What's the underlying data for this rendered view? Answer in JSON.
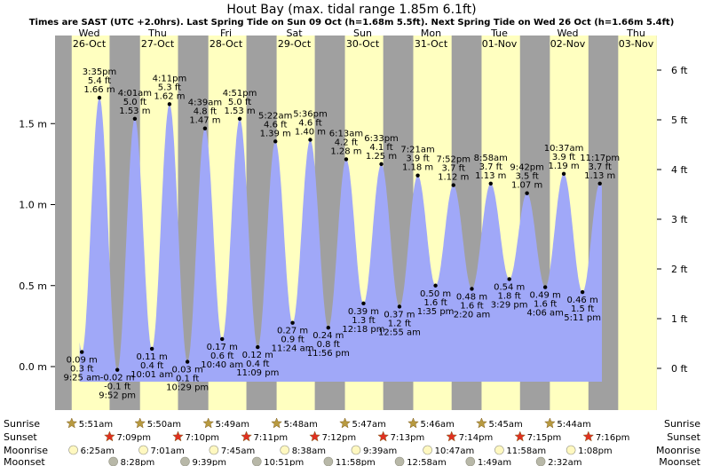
{
  "chart_data": {
    "type": "area",
    "title": "Hout Bay (max. tidal range 1.85m 6.1ft)",
    "subtitle": "Times are SAST (UTC +2.0hrs). Last Spring Tide on Sun 09 Oct (h=1.68m 5.5ft). Next Spring Tide on Wed 26 Oct (h=1.66m 5.4ft)",
    "y_left_unit": "m",
    "y_right_unit": "ft",
    "y_left_ticks": [
      "0.0 m",
      "0.5 m",
      "1.0 m",
      "1.5 m"
    ],
    "y_right_ticks": [
      "0 ft",
      "1 ft",
      "2 ft",
      "3 ft",
      "4 ft",
      "5 ft",
      "6 ft"
    ],
    "days": [
      {
        "dow": "Wed",
        "date": "26-Oct"
      },
      {
        "dow": "Thu",
        "date": "27-Oct"
      },
      {
        "dow": "Fri",
        "date": "28-Oct"
      },
      {
        "dow": "Sat",
        "date": "29-Oct"
      },
      {
        "dow": "Sun",
        "date": "30-Oct"
      },
      {
        "dow": "Mon",
        "date": "31-Oct"
      },
      {
        "dow": "Tue",
        "date": "01-Nov"
      },
      {
        "dow": "Wed",
        "date": "02-Nov"
      },
      {
        "dow": "Thu",
        "date": "03-Nov"
      }
    ],
    "day_start": "26-Oct 00:00",
    "sunrise": [
      "5:51am",
      "5:50am",
      "5:49am",
      "5:48am",
      "5:47am",
      "5:46am",
      "5:45am",
      "5:44am"
    ],
    "sunset": [
      "7:09pm",
      "7:10pm",
      "7:11pm",
      "7:12pm",
      "7:13pm",
      "7:14pm",
      "7:15pm",
      "7:16pm"
    ],
    "moonrise": [
      "6:25am",
      "7:01am",
      "7:45am",
      "8:38am",
      "9:39am",
      "10:47am",
      "11:58am",
      "1:08pm"
    ],
    "moonset": [
      "8:28pm",
      "9:39pm",
      "10:51pm",
      "11:58pm",
      "12:58am",
      "1:49am",
      "2:32am"
    ],
    "tides": [
      {
        "day": 0,
        "time": "9:25 am",
        "m": 0.09,
        "ft": "0.3 ft",
        "type": "low"
      },
      {
        "day": 0,
        "time": "3:35 pm",
        "m": 1.66,
        "ft": "5.4 ft",
        "type": "high"
      },
      {
        "day": 0,
        "time": "9:52 pm",
        "m": -0.02,
        "ft": "-0.1 ft",
        "type": "low"
      },
      {
        "day": 1,
        "time": "4:01 am",
        "m": 1.53,
        "ft": "5.0 ft",
        "type": "high"
      },
      {
        "day": 1,
        "time": "10:01 am",
        "m": 0.11,
        "ft": "0.4 ft",
        "type": "low"
      },
      {
        "day": 1,
        "time": "4:11 pm",
        "m": 1.62,
        "ft": "5.3 ft",
        "type": "high"
      },
      {
        "day": 1,
        "time": "10:29 pm",
        "m": 0.03,
        "ft": "0.1 ft",
        "type": "low"
      },
      {
        "day": 2,
        "time": "4:39 am",
        "m": 1.47,
        "ft": "4.8 ft",
        "type": "high"
      },
      {
        "day": 2,
        "time": "10:40 am",
        "m": 0.17,
        "ft": "0.6 ft",
        "type": "low"
      },
      {
        "day": 2,
        "time": "4:51 pm",
        "m": 1.53,
        "ft": "5.0 ft",
        "type": "high"
      },
      {
        "day": 2,
        "time": "11:09 pm",
        "m": 0.12,
        "ft": "0.4 ft",
        "type": "low"
      },
      {
        "day": 3,
        "time": "5:22 am",
        "m": 1.39,
        "ft": "4.6 ft",
        "type": "high"
      },
      {
        "day": 3,
        "time": "11:24 am",
        "m": 0.27,
        "ft": "0.9 ft",
        "type": "low"
      },
      {
        "day": 3,
        "time": "5:36 pm",
        "m": 1.4,
        "ft": "4.6 ft",
        "type": "high"
      },
      {
        "day": 3,
        "time": "11:56 pm",
        "m": 0.24,
        "ft": "0.8 ft",
        "type": "low"
      },
      {
        "day": 4,
        "time": "6:13 am",
        "m": 1.28,
        "ft": "4.2 ft",
        "type": "high"
      },
      {
        "day": 4,
        "time": "12:18 pm",
        "m": 0.39,
        "ft": "1.3 ft",
        "type": "low"
      },
      {
        "day": 4,
        "time": "6:33 pm",
        "m": 1.25,
        "ft": "4.1 ft",
        "type": "high"
      },
      {
        "day": 5,
        "time": "12:55 am",
        "m": 0.37,
        "ft": "1.2 ft",
        "type": "low"
      },
      {
        "day": 5,
        "time": "7:21 am",
        "m": 1.18,
        "ft": "3.9 ft",
        "type": "high"
      },
      {
        "day": 5,
        "time": "1:35 pm",
        "m": 0.5,
        "ft": "1.6 ft",
        "type": "low"
      },
      {
        "day": 5,
        "time": "7:52 pm",
        "m": 1.12,
        "ft": "3.7 ft",
        "type": "high"
      },
      {
        "day": 6,
        "time": "2:20 am",
        "m": 0.48,
        "ft": "1.6 ft",
        "type": "low"
      },
      {
        "day": 6,
        "time": "8:58 am",
        "m": 1.13,
        "ft": "3.7 ft",
        "type": "high"
      },
      {
        "day": 6,
        "time": "3:29 pm",
        "m": 0.54,
        "ft": "1.8 ft",
        "type": "low"
      },
      {
        "day": 6,
        "time": "9:42 pm",
        "m": 1.07,
        "ft": "3.5 ft",
        "type": "high"
      },
      {
        "day": 7,
        "time": "4:06 am",
        "m": 0.49,
        "ft": "1.6 ft",
        "type": "low"
      },
      {
        "day": 7,
        "time": "10:37 am",
        "m": 1.19,
        "ft": "3.9 ft",
        "type": "high"
      },
      {
        "day": 7,
        "time": "5:11 pm",
        "m": 0.46,
        "ft": "1.5 ft",
        "type": "low"
      },
      {
        "day": 7,
        "time": "11:17 pm",
        "m": 1.13,
        "ft": "3.7 ft",
        "type": "high"
      }
    ],
    "row_labels": {
      "sunrise": "Sunrise",
      "sunset": "Sunset",
      "moonrise": "Moonrise",
      "moonset": "Moonset"
    },
    "colors": {
      "day": "#ffffc0",
      "night": "#a0a0a0",
      "water": "#a0a8f8",
      "weekday": "#000000",
      "weekend": "#d00000",
      "sun": "#b89a40",
      "sunset": "#e03020",
      "moonrise": "#fff8c0",
      "moonset": "#b8b8a8"
    }
  }
}
